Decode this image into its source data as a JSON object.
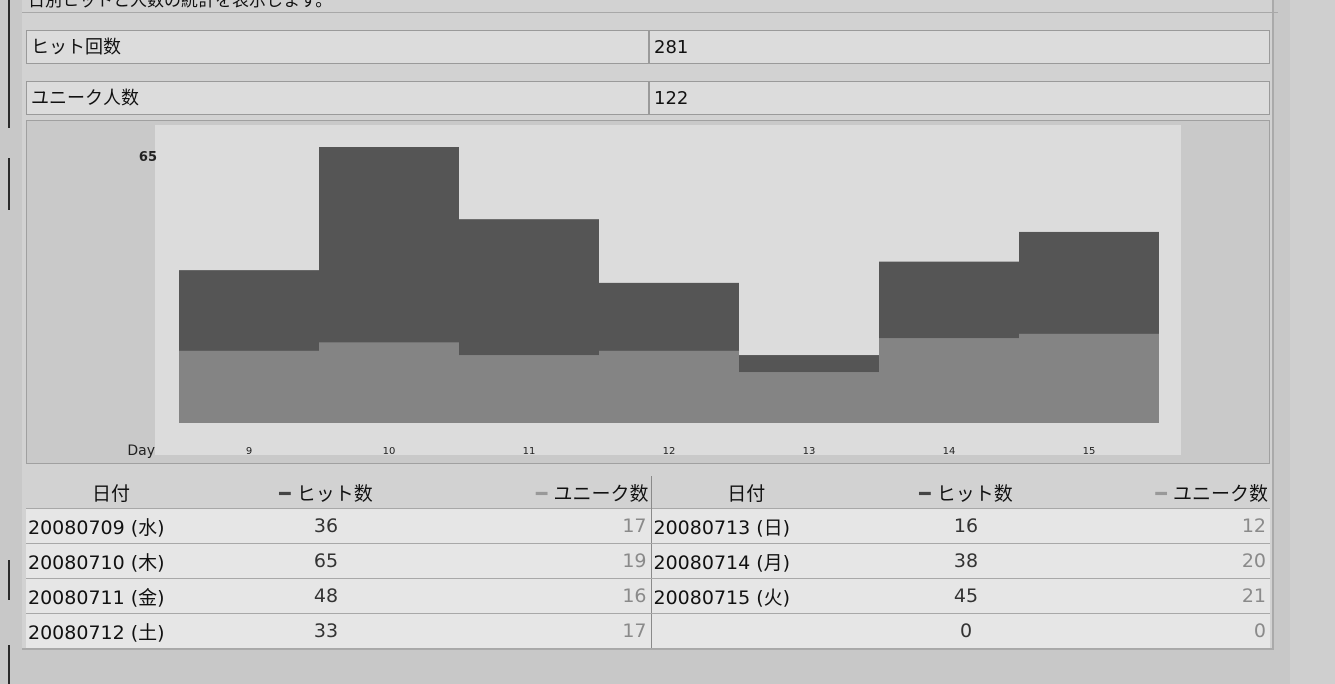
{
  "page": {
    "cut_title": "日別ヒットと人数の統計を表示します。"
  },
  "summary": [
    {
      "label": "ヒット回数",
      "value": "281"
    },
    {
      "label": "ユニーク人数",
      "value": "122"
    }
  ],
  "chart_data": {
    "type": "bar",
    "stacked": false,
    "overlay": true,
    "categories": [
      "9",
      "10",
      "11",
      "12",
      "13",
      "14",
      "15"
    ],
    "x_axis_label": "Day",
    "y_max_label": "65",
    "ylim": [
      0,
      65
    ],
    "series": [
      {
        "key": "hits",
        "values": [
          36,
          65,
          48,
          33,
          16,
          38,
          45
        ],
        "color": "#555555"
      },
      {
        "key": "unique",
        "values": [
          17,
          19,
          16,
          17,
          12,
          20,
          21
        ],
        "color": "#848484"
      }
    ],
    "plot_bg": "#dcdcdc"
  },
  "table": {
    "headers": {
      "date": "日付",
      "hits_dash": "━",
      "hits": "ヒット数",
      "unique_dash": "━",
      "unique": "ユニーク数"
    },
    "rows": [
      {
        "left": {
          "date": "20080709 (水)",
          "hits": "36",
          "unique": "17"
        },
        "right": {
          "date": "20080713 (日)",
          "hits": "16",
          "unique": "12"
        }
      },
      {
        "left": {
          "date": "20080710 (木)",
          "hits": "65",
          "unique": "19"
        },
        "right": {
          "date": "20080714 (月)",
          "hits": "38",
          "unique": "20"
        }
      },
      {
        "left": {
          "date": "20080711 (金)",
          "hits": "48",
          "unique": "16"
        },
        "right": {
          "date": "20080715 (火)",
          "hits": "45",
          "unique": "21"
        }
      },
      {
        "left": {
          "date": "20080712 (土)",
          "hits": "33",
          "unique": "17"
        },
        "right": {
          "date": "",
          "hits": "0",
          "unique": "0"
        }
      }
    ]
  }
}
